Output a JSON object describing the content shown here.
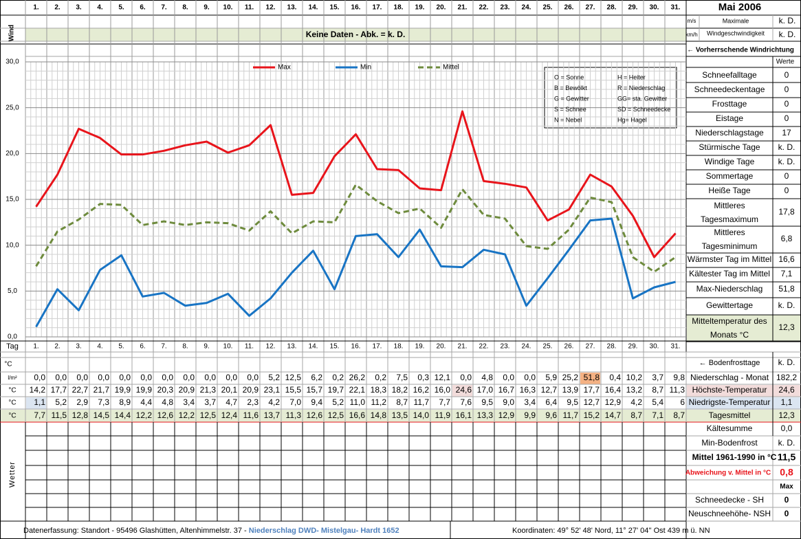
{
  "title": "Mai 2006",
  "days": [
    "1.",
    "2.",
    "3.",
    "4.",
    "5.",
    "6.",
    "7.",
    "8.",
    "9.",
    "10.",
    "11.",
    "12.",
    "13.",
    "14.",
    "15.",
    "16.",
    "17.",
    "18.",
    "19.",
    "20.",
    "21.",
    "22.",
    "23.",
    "24.",
    "25.",
    "26.",
    "27.",
    "28.",
    "29.",
    "30.",
    "31."
  ],
  "wind": {
    "label": "Wind",
    "message": "Keine Daten - Abk. = k. D.",
    "unit_ms": "m/s",
    "unit_kmh": "km/h",
    "max_label_1": "Maximale",
    "max_label_2": "Windgeschwindigkeit",
    "value_ms": "k. D.",
    "value_kmh": "k. D.",
    "direction_label": "← Vorherrschende Windrichtung"
  },
  "chart_data": {
    "type": "line",
    "x": [
      1,
      2,
      3,
      4,
      5,
      6,
      7,
      8,
      9,
      10,
      11,
      12,
      13,
      14,
      15,
      16,
      17,
      18,
      19,
      20,
      21,
      22,
      23,
      24,
      25,
      26,
      27,
      28,
      29,
      30,
      31
    ],
    "ylim": [
      0,
      30
    ],
    "yticks": [
      "0,0",
      "5,0",
      "10,0",
      "15,0",
      "20,0",
      "25,0",
      "30,0"
    ],
    "grid": true,
    "legend_position": "top-center",
    "series": [
      {
        "name": "Max",
        "color": "#e8141b",
        "dash": false,
        "values": [
          14.2,
          17.7,
          22.7,
          21.7,
          19.9,
          19.9,
          20.3,
          20.9,
          21.3,
          20.1,
          20.9,
          23.1,
          15.5,
          15.7,
          19.7,
          22.1,
          18.3,
          18.2,
          16.2,
          16.0,
          24.6,
          17.0,
          16.7,
          16.3,
          12.7,
          13.9,
          17.7,
          16.4,
          13.2,
          8.7,
          11.3
        ]
      },
      {
        "name": "Min",
        "color": "#1874c4",
        "dash": false,
        "values": [
          1.1,
          5.2,
          2.9,
          7.3,
          8.9,
          4.4,
          4.8,
          3.4,
          3.7,
          4.7,
          2.3,
          4.2,
          7.0,
          9.4,
          5.2,
          11.0,
          11.2,
          8.7,
          11.7,
          7.7,
          7.6,
          9.5,
          9.0,
          3.4,
          6.4,
          9.5,
          12.7,
          12.9,
          4.2,
          5.4,
          6.0
        ]
      },
      {
        "name": "Mittel",
        "color": "#6e8b3d",
        "dash": true,
        "values": [
          7.7,
          11.5,
          12.8,
          14.5,
          14.4,
          12.2,
          12.6,
          12.2,
          12.5,
          12.4,
          11.6,
          13.7,
          11.3,
          12.6,
          12.5,
          16.6,
          14.8,
          13.5,
          14.0,
          11.9,
          16.1,
          13.3,
          12.9,
          9.9,
          9.6,
          11.7,
          15.2,
          14.7,
          8.7,
          7.1,
          8.7
        ]
      }
    ]
  },
  "weather_legend": [
    [
      "O = Sonne",
      "H = Heiter"
    ],
    [
      "B = Bewölkt",
      "R = Niederschlag"
    ],
    [
      "G = Gewitter",
      "GG= sta. Gewitter"
    ],
    [
      "S = Schnee",
      "SD = Schneedecke"
    ],
    [
      "N = Nebel",
      "Hg= Hagel"
    ]
  ],
  "stats_header": "Werte",
  "stats": [
    {
      "label": "Schneefalltage",
      "value": "0"
    },
    {
      "label": "Schneedeckentage",
      "value": "0"
    },
    {
      "label": "Frosttage",
      "value": "0"
    },
    {
      "label": "Eistage",
      "value": "0"
    },
    {
      "label": "Niederschlagstage",
      "value": "17"
    },
    {
      "label": "Stürmische Tage",
      "value": "k. D."
    },
    {
      "label": "Windige Tage",
      "value": "k. D."
    },
    {
      "label": "Sommertage",
      "value": "0"
    },
    {
      "label": "Heiße Tage",
      "value": "0"
    },
    {
      "label": "Mittleres Tagesmaximum",
      "value": "17,8"
    },
    {
      "label": "Mittleres Tagesminimum",
      "value": "6,8"
    },
    {
      "label": "Wärmster Tag im Mittel",
      "value": "16,6"
    },
    {
      "label": "Kältester Tag im Mittel",
      "value": "7,1"
    },
    {
      "label": "Max-Niederschlag",
      "value": "51,8"
    },
    {
      "label": "Gewittertage",
      "value": "k. D."
    },
    {
      "label": "Mitteltemperatur des Monats °C",
      "value": "12,3"
    }
  ],
  "tag_label": "Tag",
  "unit_c": "°C",
  "unit_lm2": "l/m²",
  "bodenfrost_label": "← Bodenfrosttage",
  "bodenfrost_value": "k. D.",
  "data_rows": [
    {
      "unit": "l/m²",
      "label": "Niederschlag - Monat",
      "total": "182,2",
      "values": [
        "0,0",
        "0,0",
        "0,0",
        "0,0",
        "0,0",
        "0,0",
        "0,0",
        "0,0",
        "0,0",
        "0,0",
        "0,0",
        "5,2",
        "12,5",
        "6,2",
        "0,2",
        "26,2",
        "0,2",
        "7,5",
        "0,3",
        "12,1",
        "0,0",
        "4,8",
        "0,0",
        "0,0",
        "5,9",
        "25,2",
        "51,8",
        "0,4",
        "10,2",
        "3,7",
        "9,8"
      ]
    },
    {
      "unit": "°C",
      "label": "Höchste-Temperatur",
      "total": "24,6",
      "values": [
        "14,2",
        "17,7",
        "22,7",
        "21,7",
        "19,9",
        "19,9",
        "20,3",
        "20,9",
        "21,3",
        "20,1",
        "20,9",
        "23,1",
        "15,5",
        "15,7",
        "19,7",
        "22,1",
        "18,3",
        "18,2",
        "16,2",
        "16,0",
        "24,6",
        "17,0",
        "16,7",
        "16,3",
        "12,7",
        "13,9",
        "17,7",
        "16,4",
        "13,2",
        "8,7",
        "11,3"
      ]
    },
    {
      "unit": "°C",
      "label": "Niedrigste-Temperatur",
      "total": "1,1",
      "values": [
        "1,1",
        "5,2",
        "2,9",
        "7,3",
        "8,9",
        "4,4",
        "4,8",
        "3,4",
        "3,7",
        "4,7",
        "2,3",
        "4,2",
        "7,0",
        "9,4",
        "5,2",
        "11,0",
        "11,2",
        "8,7",
        "11,7",
        "7,7",
        "7,6",
        "9,5",
        "9,0",
        "3,4",
        "6,4",
        "9,5",
        "12,7",
        "12,9",
        "4,2",
        "5,4",
        "6"
      ]
    },
    {
      "unit": "°C",
      "label": "Tagesmittel",
      "total": "12,3",
      "values": [
        "7,7",
        "11,5",
        "12,8",
        "14,5",
        "14,4",
        "12,2",
        "12,6",
        "12,2",
        "12,5",
        "12,4",
        "11,6",
        "13,7",
        "11,3",
        "12,6",
        "12,5",
        "16,6",
        "14,8",
        "13,5",
        "14,0",
        "11,9",
        "16,1",
        "13,3",
        "12,9",
        "9,9",
        "9,6",
        "11,7",
        "15,2",
        "14,7",
        "8,7",
        "7,1",
        "8,7"
      ]
    }
  ],
  "extra_stats": [
    {
      "label": "Kältesumme",
      "value": "0,0"
    },
    {
      "label": "Min-Bodenfrost",
      "value": "k. D."
    },
    {
      "label": "Mittel 1961-1990 in °C",
      "value": "11,5"
    },
    {
      "label": "Abweichung v. Mittel in °C",
      "value": "0,8"
    }
  ],
  "max_label": "Max",
  "wetter_label": "Wetter",
  "snow_stats": [
    {
      "label": "Schneedecke -  SH",
      "value": "0"
    },
    {
      "label": "Neuschneehöhe- NSH",
      "value": "0"
    }
  ],
  "footer": {
    "prefix": "Datenerfassung:  Standort -  95496  Glashütten, Altenhimmelstr. 37 - ",
    "source": "Niederschlag DWD- Mistelgau- Hardt 1652",
    "coords": "Koordinaten:  49° 52' 48' Nord,    11° 27' 04'' Ost   439 m ü. NN"
  }
}
